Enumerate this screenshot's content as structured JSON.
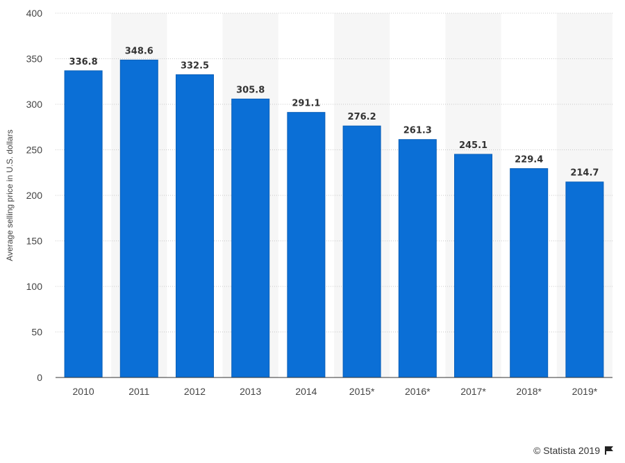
{
  "chart_data": {
    "type": "bar",
    "categories": [
      "2010",
      "2011",
      "2012",
      "2013",
      "2014",
      "2015*",
      "2016*",
      "2017*",
      "2018*",
      "2019*"
    ],
    "values": [
      336.8,
      348.6,
      332.5,
      305.8,
      291.1,
      276.2,
      261.3,
      245.1,
      229.4,
      214.7
    ],
    "value_labels": [
      "336.8",
      "348.6",
      "332.5",
      "305.8",
      "291.1",
      "276.2",
      "261.3",
      "245.1",
      "229.4",
      "214.7"
    ],
    "ylabel": "Average selling price in U.S. dollars",
    "ylim": [
      0,
      400
    ],
    "yticks": [
      "0",
      "50",
      "100",
      "150",
      "200",
      "250",
      "300",
      "350",
      "400"
    ],
    "grid": true,
    "bar_color": "#0b6fd6",
    "alt_band_color": "#f6f6f6"
  },
  "footer": {
    "credit": "© Statista 2019",
    "flag_icon": "flag-icon"
  }
}
